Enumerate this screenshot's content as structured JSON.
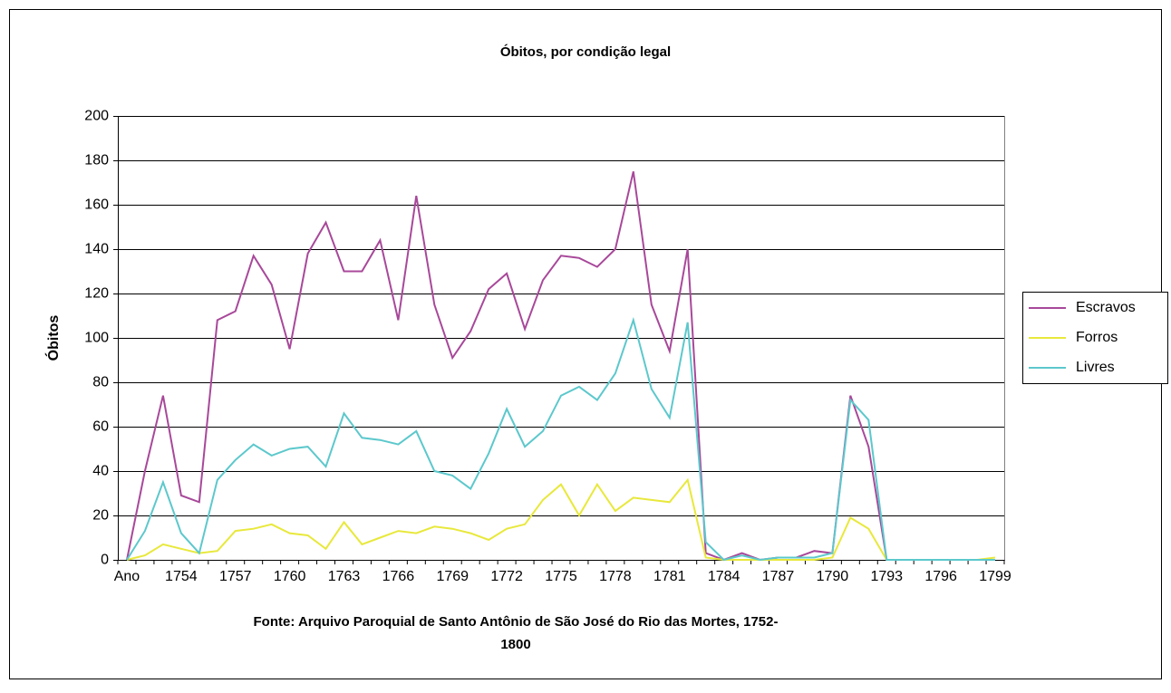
{
  "chart_data": {
    "type": "line",
    "title": "Óbitos, por condição legal",
    "ylabel": "Óbitos",
    "xlabel": [
      "Fonte: Arquivo Paroquial de Santo Antônio de São José do Rio das Mortes, 1752-",
      "1800"
    ],
    "categories": [
      "Ano",
      null,
      null,
      "1754",
      null,
      null,
      "1757",
      null,
      null,
      "1760",
      null,
      null,
      "1763",
      null,
      null,
      "1766",
      null,
      null,
      "1769",
      null,
      null,
      "1772",
      null,
      null,
      "1775",
      null,
      null,
      "1778",
      null,
      null,
      "1781",
      null,
      null,
      "1784",
      null,
      null,
      "1787",
      null,
      null,
      "1790",
      null,
      null,
      "1793",
      null,
      null,
      "1796",
      null,
      null,
      "1799"
    ],
    "series": [
      {
        "name": "Escravos",
        "color": "#a8489a",
        "values": [
          0,
          40,
          74,
          29,
          26,
          108,
          112,
          137,
          124,
          95,
          138,
          152,
          130,
          130,
          144,
          108,
          164,
          115,
          91,
          103,
          122,
          129,
          104,
          126,
          137,
          136,
          132,
          140,
          175,
          115,
          94,
          140,
          3,
          0,
          3,
          0,
          1,
          1,
          4,
          3,
          74,
          51,
          0,
          0,
          0,
          0,
          0,
          0,
          0
        ]
      },
      {
        "name": "Forros",
        "color": "#e8e83c",
        "values": [
          0,
          2,
          7,
          5,
          3,
          4,
          13,
          14,
          16,
          12,
          11,
          5,
          17,
          7,
          10,
          13,
          12,
          15,
          14,
          12,
          9,
          14,
          16,
          27,
          34,
          20,
          34,
          22,
          28,
          27,
          26,
          36,
          1,
          0,
          0,
          0,
          0,
          0,
          0,
          1,
          19,
          14,
          0,
          0,
          0,
          0,
          0,
          0,
          1
        ]
      },
      {
        "name": "Livres",
        "color": "#5cc8cc",
        "values": [
          0,
          13,
          35,
          12,
          3,
          36,
          45,
          52,
          47,
          50,
          51,
          42,
          66,
          55,
          54,
          52,
          58,
          40,
          38,
          32,
          48,
          68,
          51,
          58,
          74,
          78,
          72,
          84,
          108,
          77,
          64,
          107,
          8,
          0,
          2,
          0,
          1,
          1,
          1,
          3,
          72,
          63,
          0,
          0,
          0,
          0,
          0,
          0,
          0
        ]
      }
    ],
    "ylim": [
      0,
      200
    ],
    "yticks": [
      0,
      20,
      40,
      60,
      80,
      100,
      120,
      140,
      160,
      180,
      200
    ],
    "grid": true,
    "legend": "right"
  }
}
